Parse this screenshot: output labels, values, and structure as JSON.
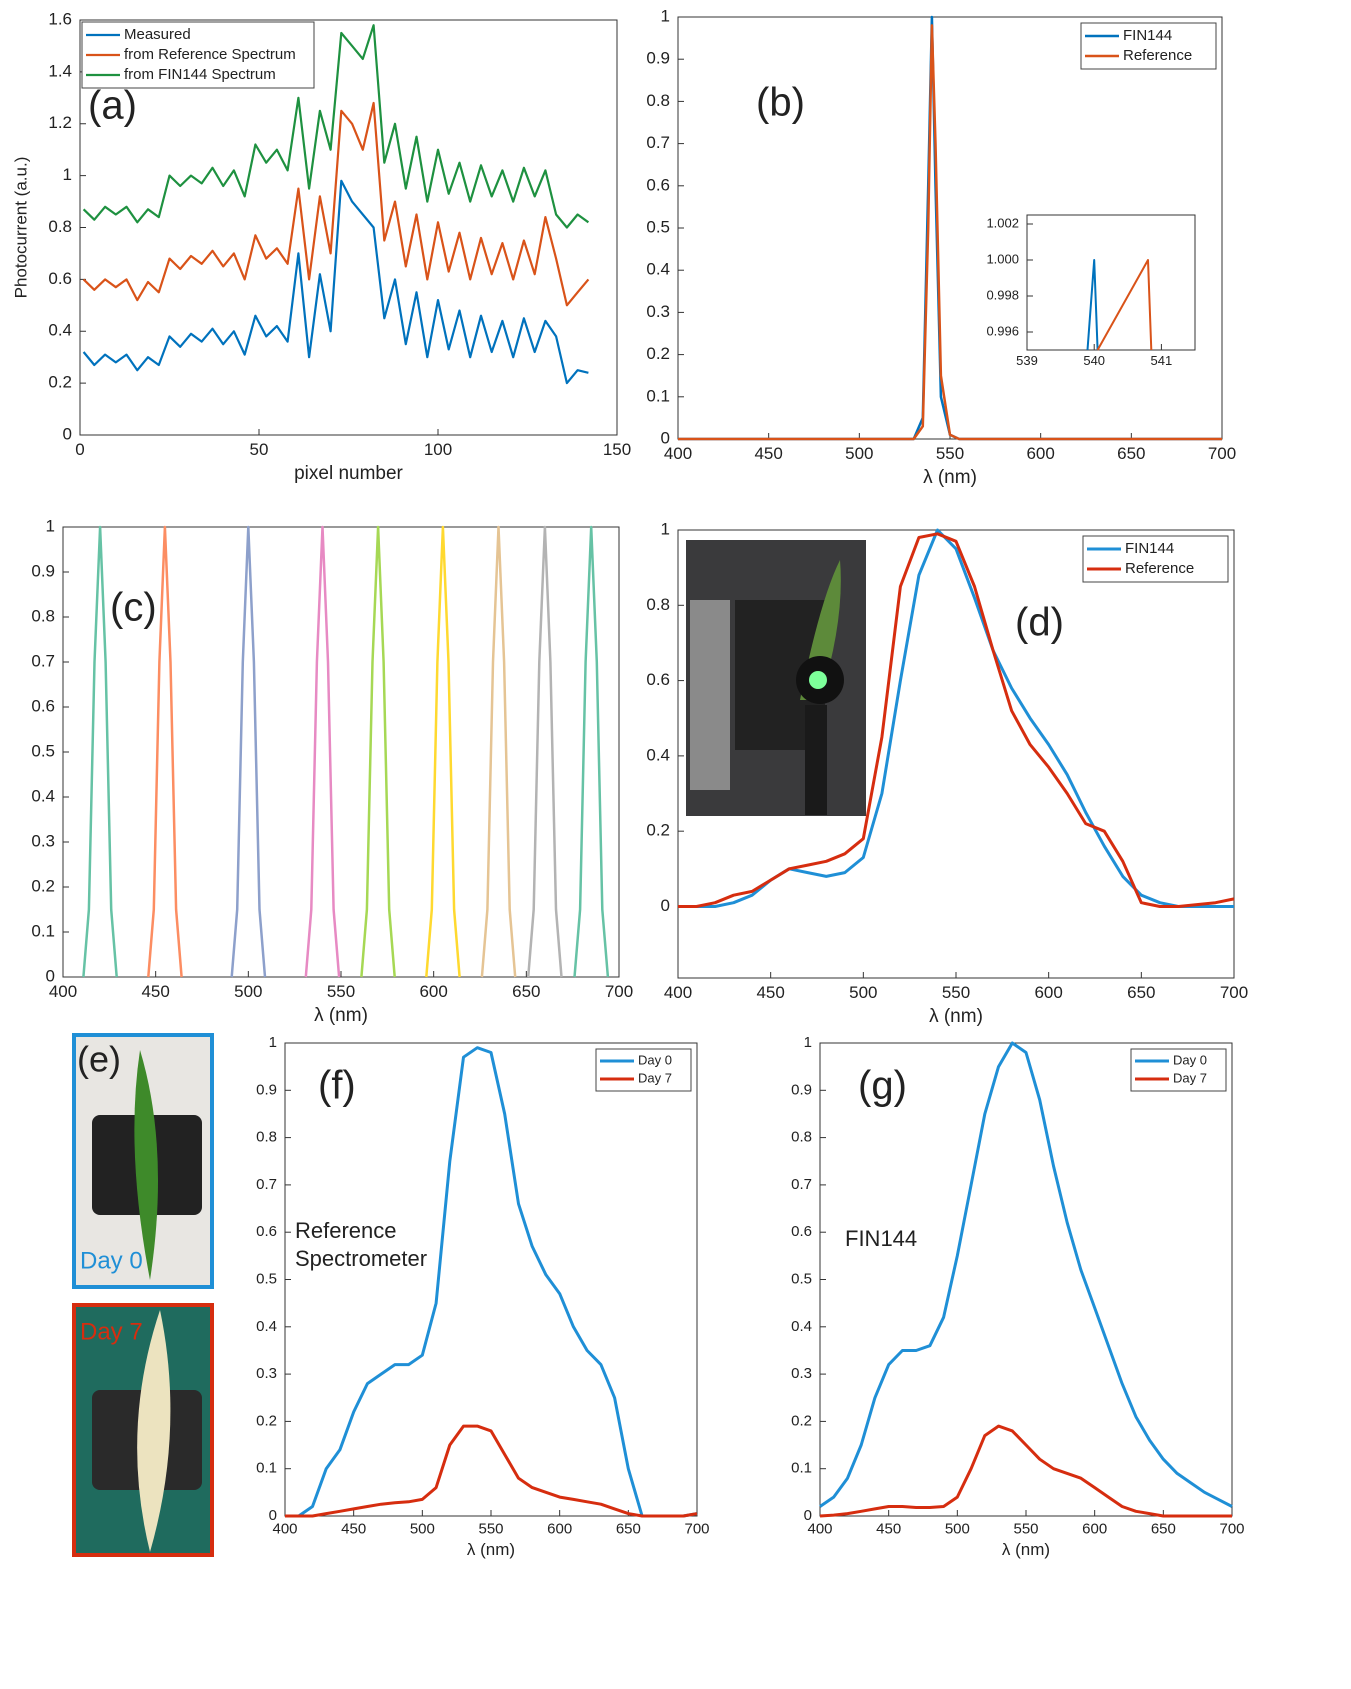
{
  "chart_data": [
    {
      "type": "line",
      "label": "(a)",
      "xlabel": "pixel number",
      "ylabel": "Photocurrent (a.u.)",
      "x": [
        1,
        4,
        7,
        10,
        13,
        16,
        19,
        22,
        25,
        28,
        31,
        34,
        37,
        40,
        43,
        46,
        49,
        52,
        55,
        58,
        61,
        64,
        67,
        70,
        73,
        76,
        79,
        82,
        85,
        88,
        91,
        94,
        97,
        100,
        103,
        106,
        109,
        112,
        115,
        118,
        121,
        124,
        127,
        130,
        133,
        136,
        139,
        142
      ],
      "series": [
        {
          "name": "Measured",
          "color": "#0072BD",
          "values": [
            0.32,
            0.27,
            0.31,
            0.28,
            0.31,
            0.25,
            0.3,
            0.27,
            0.38,
            0.34,
            0.39,
            0.36,
            0.41,
            0.35,
            0.4,
            0.31,
            0.46,
            0.38,
            0.42,
            0.36,
            0.7,
            0.3,
            0.62,
            0.4,
            0.98,
            0.9,
            0.85,
            0.8,
            0.45,
            0.6,
            0.35,
            0.55,
            0.3,
            0.52,
            0.33,
            0.48,
            0.3,
            0.46,
            0.32,
            0.44,
            0.3,
            0.45,
            0.32,
            0.44,
            0.38,
            0.2,
            0.25,
            0.24
          ]
        },
        {
          "name": "from Reference Spectrum",
          "color": "#D95319",
          "values": [
            0.6,
            0.56,
            0.6,
            0.57,
            0.6,
            0.52,
            0.59,
            0.55,
            0.68,
            0.64,
            0.69,
            0.66,
            0.71,
            0.65,
            0.7,
            0.6,
            0.77,
            0.68,
            0.72,
            0.66,
            0.95,
            0.6,
            0.92,
            0.7,
            1.25,
            1.2,
            1.1,
            1.28,
            0.75,
            0.9,
            0.65,
            0.85,
            0.6,
            0.82,
            0.63,
            0.78,
            0.6,
            0.76,
            0.62,
            0.74,
            0.6,
            0.75,
            0.62,
            0.84,
            0.68,
            0.5,
            0.55,
            0.6
          ]
        },
        {
          "name": "from FIN144 Spectrum",
          "color": "#1E9140",
          "values": [
            0.87,
            0.83,
            0.88,
            0.85,
            0.88,
            0.82,
            0.87,
            0.84,
            1.0,
            0.96,
            1.0,
            0.97,
            1.03,
            0.96,
            1.02,
            0.92,
            1.12,
            1.05,
            1.1,
            1.02,
            1.3,
            0.95,
            1.25,
            1.1,
            1.55,
            1.5,
            1.45,
            1.58,
            1.05,
            1.2,
            0.95,
            1.15,
            0.9,
            1.1,
            0.93,
            1.05,
            0.9,
            1.04,
            0.92,
            1.02,
            0.9,
            1.03,
            0.92,
            1.02,
            0.85,
            0.8,
            0.85,
            0.82
          ]
        }
      ],
      "xlim": [
        0,
        150
      ],
      "xticks": [
        0,
        50,
        100,
        150
      ],
      "ylim": [
        0,
        1.6
      ],
      "yticks": [
        0,
        0.2,
        0.4,
        0.6,
        0.8,
        1,
        1.2,
        1.4,
        1.6
      ],
      "legend": "upper left"
    },
    {
      "type": "line",
      "label": "(b)",
      "xlabel": "λ (nm)",
      "x": [
        400,
        530,
        535,
        538,
        540,
        542,
        545,
        550,
        555,
        700
      ],
      "series": [
        {
          "name": "FIN144",
          "color": "#0072BD",
          "values": [
            0,
            0,
            0.05,
            0.6,
            1.0,
            0.6,
            0.1,
            0.01,
            0,
            0
          ]
        },
        {
          "name": "Reference",
          "color": "#D95319",
          "values": [
            0,
            0,
            0.03,
            0.5,
            0.98,
            0.7,
            0.15,
            0.01,
            0,
            0
          ]
        }
      ],
      "xlim": [
        400,
        700
      ],
      "xticks": [
        400,
        450,
        500,
        550,
        600,
        650,
        700
      ],
      "ylim": [
        0,
        1
      ],
      "yticks": [
        0,
        0.1,
        0.2,
        0.3,
        0.4,
        0.5,
        0.6,
        0.7,
        0.8,
        0.9,
        1
      ],
      "legend": "upper right"
    },
    {
      "type": "line",
      "series": [
        {
          "color": "#0072BD",
          "x": [
            539.9,
            540,
            540.05
          ],
          "values": [
            0.995,
            1.0,
            0.995
          ]
        },
        {
          "color": "#D95319",
          "x": [
            540.05,
            540.8,
            540.85
          ],
          "values": [
            0.995,
            1.0,
            0.995
          ]
        }
      ],
      "xlim": [
        539,
        541.5
      ],
      "xticks": [
        539,
        540,
        541
      ],
      "ylim": [
        0.995,
        1.0025
      ],
      "yticks": [
        0.996,
        0.998,
        {
          "value": 1.0,
          "label": "1.000"
        },
        1.002
      ]
    },
    {
      "type": "line",
      "label": "(c)",
      "xlabel": "λ (nm)",
      "series": [
        {
          "color": "#66C2A5",
          "x": [
            411,
            414,
            417,
            420,
            423,
            426,
            429
          ],
          "values": [
            0,
            0.15,
            0.7,
            1,
            0.7,
            0.15,
            0
          ]
        },
        {
          "color": "#FC8D62",
          "x": [
            446,
            449,
            452,
            455,
            458,
            461,
            464
          ],
          "values": [
            0,
            0.15,
            0.7,
            1,
            0.7,
            0.15,
            0
          ]
        },
        {
          "color": "#8DA0CB",
          "x": [
            491,
            494,
            497,
            500,
            503,
            506,
            509
          ],
          "values": [
            0,
            0.15,
            0.7,
            1,
            0.7,
            0.15,
            0
          ]
        },
        {
          "color": "#E78AC3",
          "x": [
            531,
            534,
            537,
            540,
            543,
            546,
            549
          ],
          "values": [
            0,
            0.15,
            0.7,
            1,
            0.7,
            0.15,
            0
          ]
        },
        {
          "color": "#A6D854",
          "x": [
            561,
            564,
            567,
            570,
            573,
            576,
            579
          ],
          "values": [
            0,
            0.15,
            0.7,
            1,
            0.7,
            0.15,
            0
          ]
        },
        {
          "color": "#FFD92F",
          "x": [
            596,
            599,
            602,
            605,
            608,
            611,
            614
          ],
          "values": [
            0,
            0.15,
            0.7,
            1,
            0.7,
            0.15,
            0
          ]
        },
        {
          "color": "#E5C494",
          "x": [
            626,
            629,
            632,
            635,
            638,
            641,
            644
          ],
          "values": [
            0,
            0.15,
            0.7,
            1,
            0.7,
            0.15,
            0
          ]
        },
        {
          "color": "#B3B3B3",
          "x": [
            651,
            654,
            657,
            660,
            663,
            666,
            669
          ],
          "values": [
            0,
            0.15,
            0.7,
            1,
            0.7,
            0.15,
            0
          ]
        },
        {
          "color": "#66C2A5",
          "x": [
            676,
            679,
            682,
            685,
            688,
            691,
            694
          ],
          "values": [
            0,
            0.15,
            0.7,
            1,
            0.7,
            0.15,
            0
          ]
        }
      ],
      "xlim": [
        400,
        700
      ],
      "xticks": [
        400,
        450,
        500,
        550,
        600,
        650,
        700
      ],
      "ylim": [
        0,
        1
      ],
      "yticks": [
        0,
        0.1,
        0.2,
        0.3,
        0.4,
        0.5,
        0.6,
        0.7,
        0.8,
        0.9,
        1
      ]
    },
    {
      "type": "line",
      "label": "(d)",
      "xlabel": "λ (nm)",
      "x": [
        400,
        410,
        420,
        430,
        440,
        450,
        460,
        470,
        480,
        490,
        500,
        510,
        520,
        530,
        540,
        550,
        560,
        570,
        580,
        590,
        600,
        610,
        620,
        630,
        640,
        650,
        660,
        670,
        680,
        690,
        700
      ],
      "series": [
        {
          "name": "FIN144",
          "color": "#1F8FD6",
          "values": [
            0,
            0,
            0,
            0.01,
            0.03,
            0.07,
            0.1,
            0.09,
            0.08,
            0.09,
            0.13,
            0.3,
            0.6,
            0.88,
            1.0,
            0.95,
            0.82,
            0.68,
            0.58,
            0.5,
            0.43,
            0.35,
            0.25,
            0.16,
            0.08,
            0.03,
            0.01,
            0,
            0,
            0,
            0
          ]
        },
        {
          "name": "Reference",
          "color": "#D62D0F",
          "values": [
            0,
            0,
            0.01,
            0.03,
            0.04,
            0.07,
            0.1,
            0.11,
            0.12,
            0.14,
            0.18,
            0.45,
            0.85,
            0.98,
            0.99,
            0.97,
            0.85,
            0.68,
            0.52,
            0.43,
            0.37,
            0.3,
            0.22,
            0.2,
            0.12,
            0.01,
            0,
            0,
            0.005,
            0.01,
            0.02
          ]
        }
      ],
      "xlim": [
        400,
        700
      ],
      "xticks": [
        400,
        450,
        500,
        550,
        600,
        650,
        700
      ],
      "ylim": [
        -0.19,
        1
      ],
      "yticks": [
        0,
        0.2,
        0.4,
        0.6,
        0.8,
        1
      ],
      "legend": "upper right"
    },
    {
      "type": "line",
      "label": "(f)",
      "xlabel": "λ (nm)",
      "note_lines": [
        "Reference",
        "Spectrometer"
      ],
      "x": [
        400,
        410,
        420,
        430,
        440,
        450,
        460,
        470,
        480,
        490,
        500,
        510,
        520,
        530,
        540,
        550,
        560,
        570,
        580,
        590,
        600,
        610,
        620,
        630,
        640,
        650,
        660,
        670,
        680,
        690,
        700
      ],
      "series": [
        {
          "name": "Day 0",
          "color": "#1F8FD6",
          "values": [
            0,
            0,
            0.02,
            0.1,
            0.14,
            0.22,
            0.28,
            0.3,
            0.32,
            0.32,
            0.34,
            0.45,
            0.75,
            0.97,
            0.99,
            0.98,
            0.85,
            0.66,
            0.57,
            0.51,
            0.47,
            0.4,
            0.35,
            0.32,
            0.25,
            0.1,
            0,
            0,
            0,
            0,
            0.005
          ]
        },
        {
          "name": "Day 7",
          "color": "#D62D0F",
          "values": [
            0,
            0,
            0,
            0.005,
            0.01,
            0.015,
            0.02,
            0.025,
            0.028,
            0.03,
            0.035,
            0.06,
            0.15,
            0.19,
            0.19,
            0.18,
            0.13,
            0.08,
            0.06,
            0.05,
            0.04,
            0.035,
            0.03,
            0.025,
            0.015,
            0.005,
            0,
            0,
            0,
            0,
            0.005
          ]
        }
      ],
      "xlim": [
        400,
        700
      ],
      "xticks": [
        400,
        450,
        500,
        550,
        600,
        650,
        700
      ],
      "ylim": [
        0,
        1
      ],
      "yticks": [
        0,
        0.1,
        0.2,
        0.3,
        0.4,
        0.5,
        0.6,
        0.7,
        0.8,
        0.9,
        1
      ],
      "legend": "upper right"
    },
    {
      "type": "line",
      "label": "(g)",
      "xlabel": "λ (nm)",
      "note_lines": [
        "FIN144"
      ],
      "x": [
        400,
        410,
        420,
        430,
        440,
        450,
        460,
        470,
        480,
        490,
        500,
        510,
        520,
        530,
        540,
        550,
        560,
        570,
        580,
        590,
        600,
        610,
        620,
        630,
        640,
        650,
        660,
        670,
        680,
        690,
        700
      ],
      "series": [
        {
          "name": "Day 0",
          "color": "#1F8FD6",
          "values": [
            0.02,
            0.04,
            0.08,
            0.15,
            0.25,
            0.32,
            0.35,
            0.35,
            0.36,
            0.42,
            0.55,
            0.7,
            0.85,
            0.95,
            1.0,
            0.98,
            0.88,
            0.74,
            0.62,
            0.52,
            0.44,
            0.36,
            0.28,
            0.21,
            0.16,
            0.12,
            0.09,
            0.07,
            0.05,
            0.035,
            0.02
          ]
        },
        {
          "name": "Day 7",
          "color": "#D62D0F",
          "values": [
            0,
            0.002,
            0.005,
            0.01,
            0.015,
            0.02,
            0.02,
            0.018,
            0.018,
            0.02,
            0.04,
            0.1,
            0.17,
            0.19,
            0.18,
            0.15,
            0.12,
            0.1,
            0.09,
            0.08,
            0.06,
            0.04,
            0.02,
            0.01,
            0.005,
            0,
            0,
            0,
            0,
            0,
            0
          ]
        }
      ],
      "xlim": [
        400,
        700
      ],
      "xticks": [
        400,
        450,
        500,
        550,
        600,
        650,
        700
      ],
      "ylim": [
        0,
        1
      ],
      "yticks": [
        0,
        0.1,
        0.2,
        0.3,
        0.4,
        0.5,
        0.6,
        0.7,
        0.8,
        0.9,
        1
      ],
      "legend": "upper right"
    }
  ],
  "photos": {
    "label": "(e)",
    "day0": "Day 0",
    "day7": "Day 7"
  }
}
